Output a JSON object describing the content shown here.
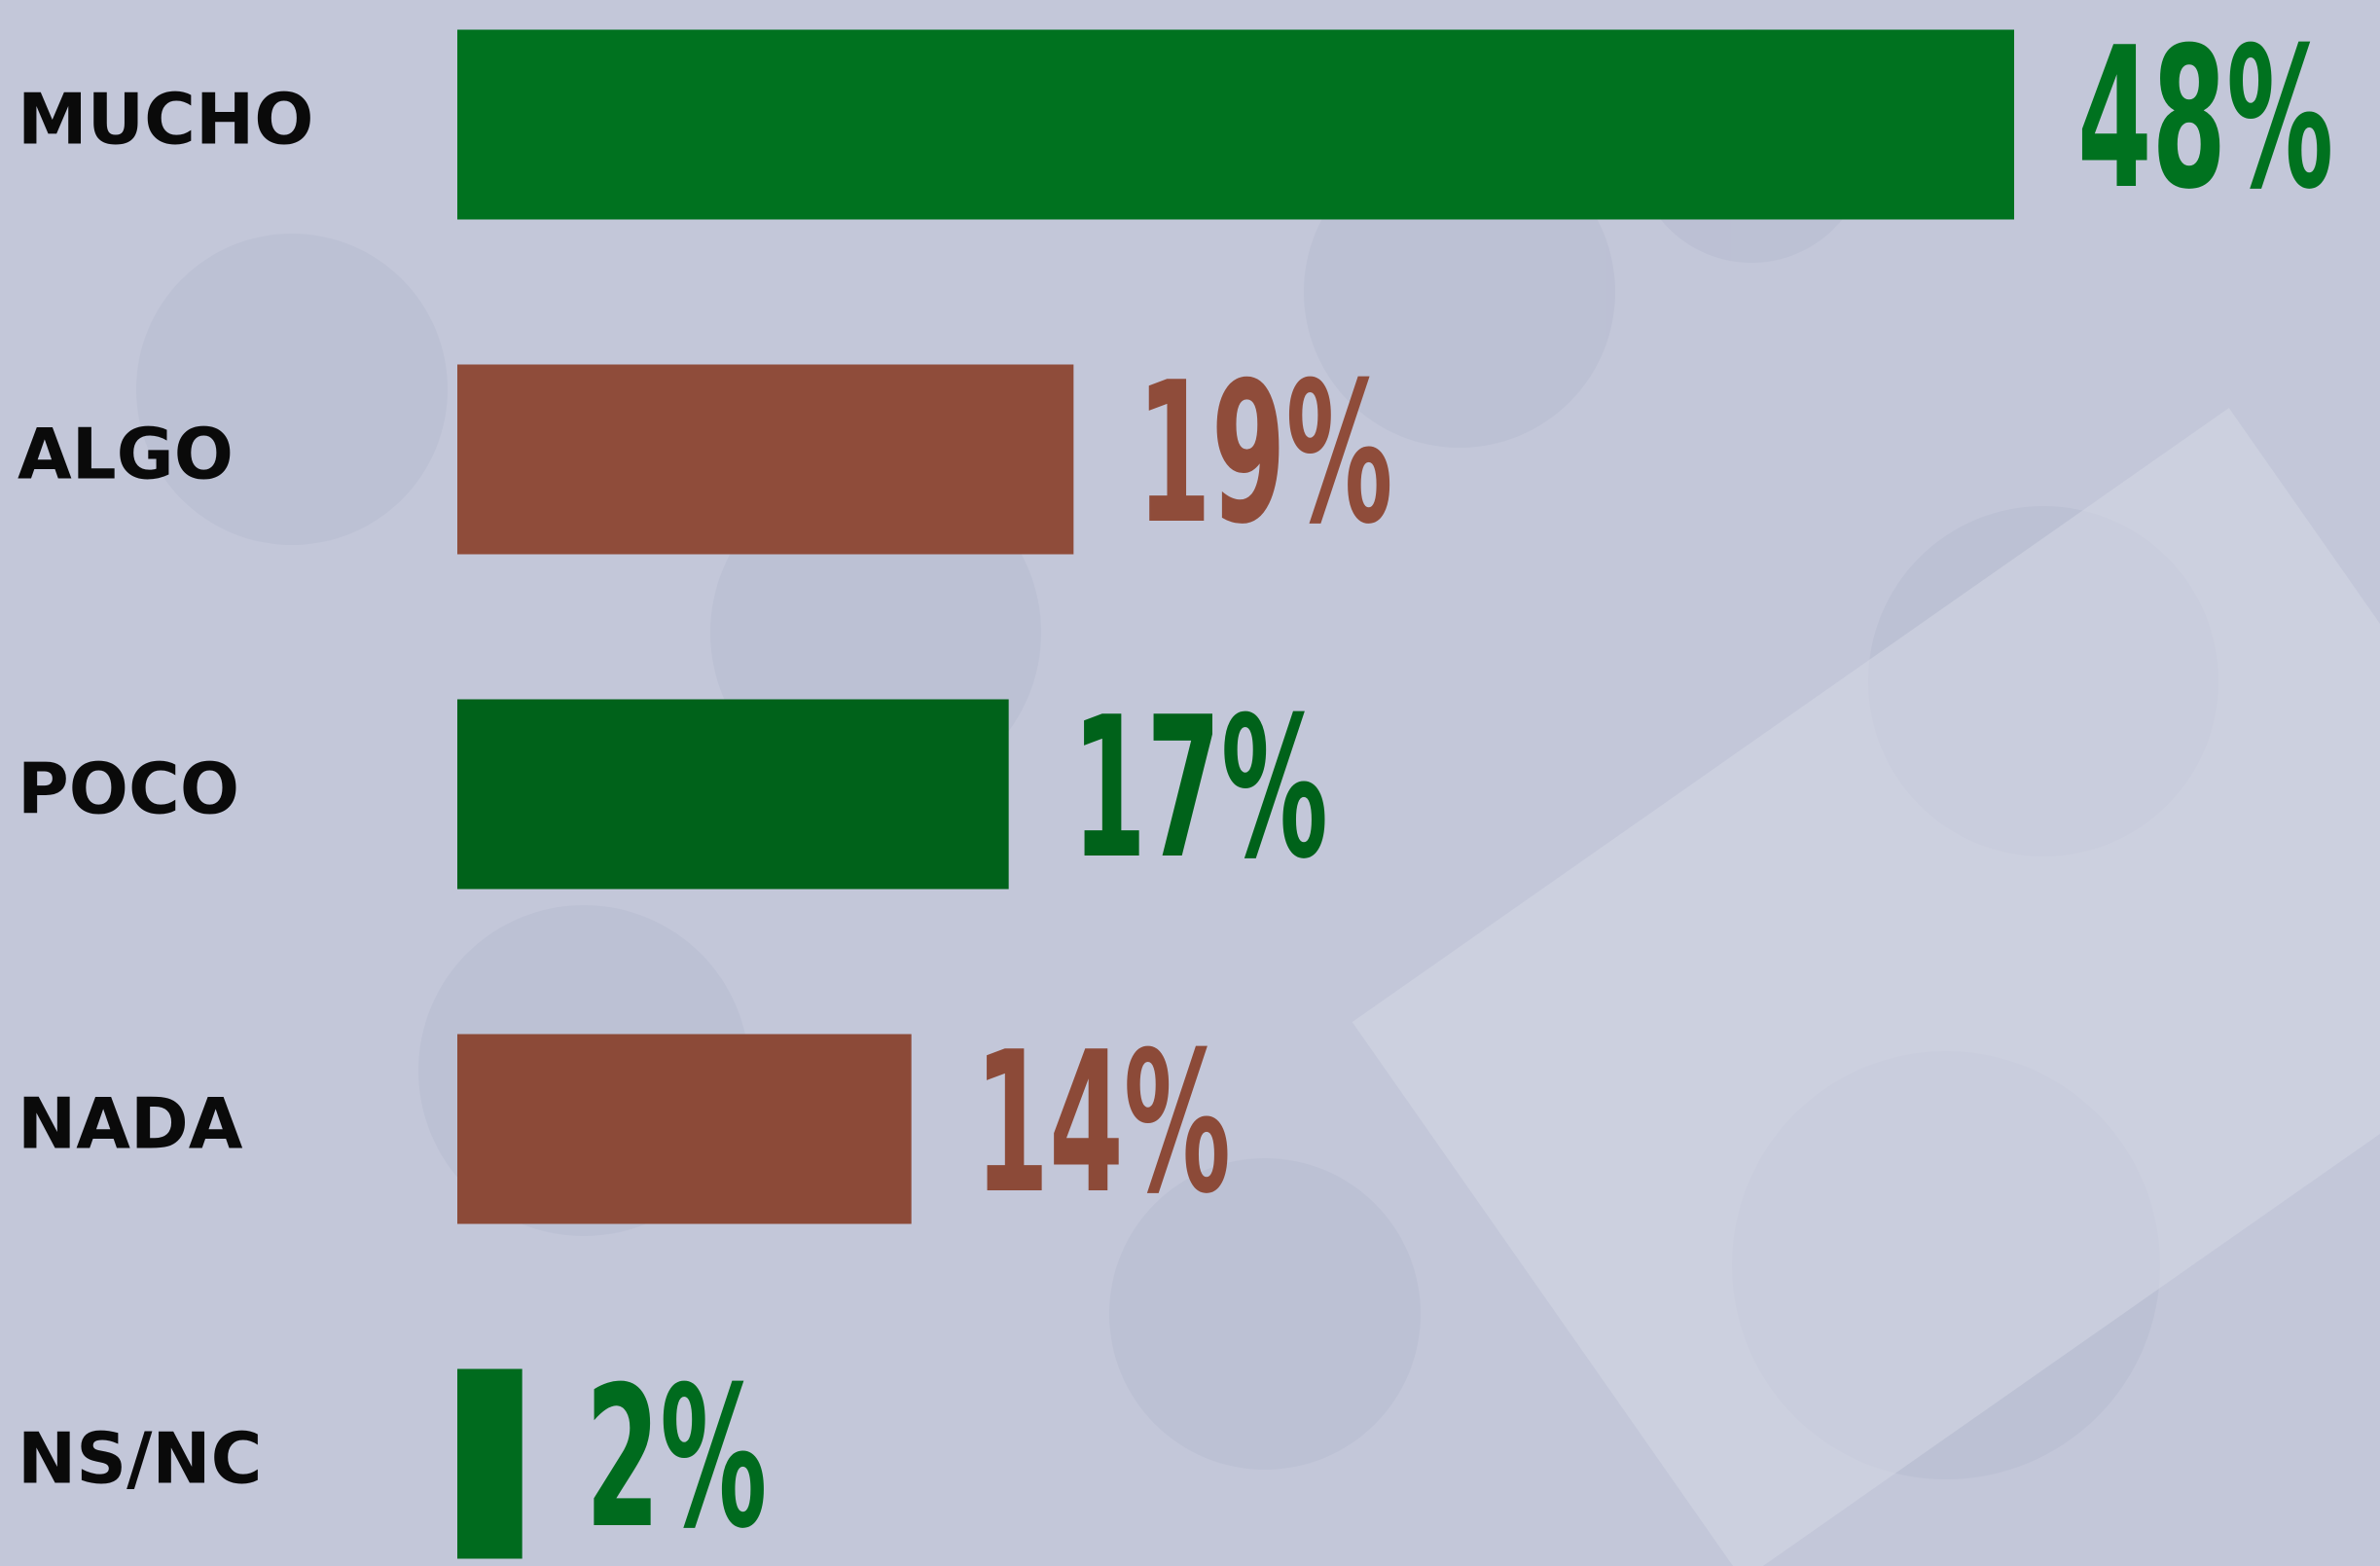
{
  "chart_data": {
    "type": "hbar",
    "categories": [
      "MUCHO",
      "ALGO",
      "POCO",
      "NADA",
      "NS/NC"
    ],
    "values": [
      48,
      19,
      17,
      14,
      2
    ],
    "value_labels": [
      "48%",
      "19%",
      "17%",
      "14%",
      "2%"
    ],
    "colors": [
      "#00721f",
      "#8f4c3a",
      "#00621a",
      "#8c4a38",
      "#006b1e"
    ]
  }
}
